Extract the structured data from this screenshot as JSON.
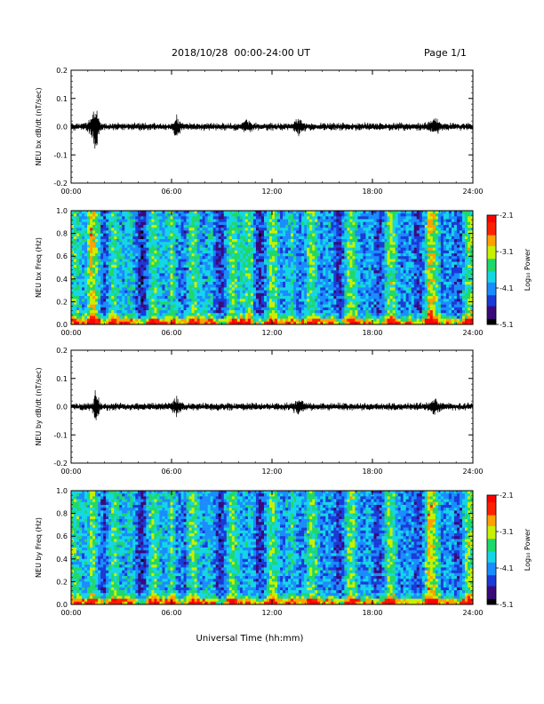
{
  "header": {
    "title": "2018/10/28  00:00-24:00 UT",
    "page_label": "Page 1/1"
  },
  "colors": {
    "trace": "#000000",
    "axis": "#000000",
    "colormap": [
      "#000000",
      "#3a0a7a",
      "#1a3bd8",
      "#1a8cff",
      "#14d6e6",
      "#1fd86a",
      "#c8f000",
      "#ffa000",
      "#ff2000",
      "#ff0000"
    ]
  },
  "chart_data": [
    {
      "type": "line",
      "panel": "bx-waveform",
      "ylabel": "NEU bx dB/dt (nT/sec)",
      "ylim": [
        -0.2,
        0.2
      ],
      "yticks": [
        "0.2",
        "0.1",
        "0.0",
        "-0.1",
        "-0.2"
      ],
      "xlim": [
        0,
        24
      ],
      "xticks": [
        "00:00",
        "06:00",
        "12:00",
        "18:00",
        "24:00"
      ],
      "baseline_amplitude": 0.012,
      "bursts": [
        {
          "t": 1.5,
          "amp": 0.09
        },
        {
          "t": 1.3,
          "amp": 0.05
        },
        {
          "t": 6.3,
          "amp": 0.06
        },
        {
          "t": 10.5,
          "amp": 0.02
        },
        {
          "t": 13.6,
          "amp": 0.03
        },
        {
          "t": 21.7,
          "amp": 0.04
        }
      ]
    },
    {
      "type": "heatmap",
      "panel": "bx-spectrogram",
      "ylabel": "NEU bx Freq (Hz)",
      "ylim": [
        0,
        1.0
      ],
      "yticks": [
        "1.0",
        "0.8",
        "0.6",
        "0.4",
        "0.2",
        "0.0"
      ],
      "xlim": [
        0,
        24
      ],
      "xticks": [
        "00:00",
        "06:00",
        "12:00",
        "18:00",
        "24:00"
      ],
      "colorbar": {
        "label": "Log₁₀ Power",
        "range": [
          -5.1,
          -2.1
        ],
        "ticks": [
          "-2.1",
          "-3.1",
          "-4.1",
          "-5.1"
        ]
      }
    },
    {
      "type": "line",
      "panel": "by-waveform",
      "ylabel": "NEU by dB/dt (nT/sec)",
      "ylim": [
        -0.2,
        0.2
      ],
      "yticks": [
        "0.2",
        "0.1",
        "0.0",
        "-0.1",
        "-0.2"
      ],
      "xlim": [
        0,
        24
      ],
      "xticks": [
        "00:00",
        "06:00",
        "12:00",
        "18:00",
        "24:00"
      ],
      "baseline_amplitude": 0.012,
      "bursts": [
        {
          "t": 1.5,
          "amp": 0.08
        },
        {
          "t": 6.3,
          "amp": 0.04
        },
        {
          "t": 13.6,
          "amp": 0.03
        },
        {
          "t": 21.7,
          "amp": 0.035
        }
      ]
    },
    {
      "type": "heatmap",
      "panel": "by-spectrogram",
      "ylabel": "NEU by Freq (Hz)",
      "ylim": [
        0,
        1.0
      ],
      "yticks": [
        "1.0",
        "0.8",
        "0.6",
        "0.4",
        "0.2",
        "0.0"
      ],
      "xlim": [
        0,
        24
      ],
      "xticks": [
        "00:00",
        "06:00",
        "12:00",
        "18:00",
        "24:00"
      ],
      "colorbar": {
        "label": "Log₁₀ Power",
        "range": [
          -5.1,
          -2.1
        ],
        "ticks": [
          "-2.1",
          "-3.1",
          "-4.1",
          "-5.1"
        ]
      }
    }
  ],
  "xlabel": "Universal Time (hh:mm)"
}
